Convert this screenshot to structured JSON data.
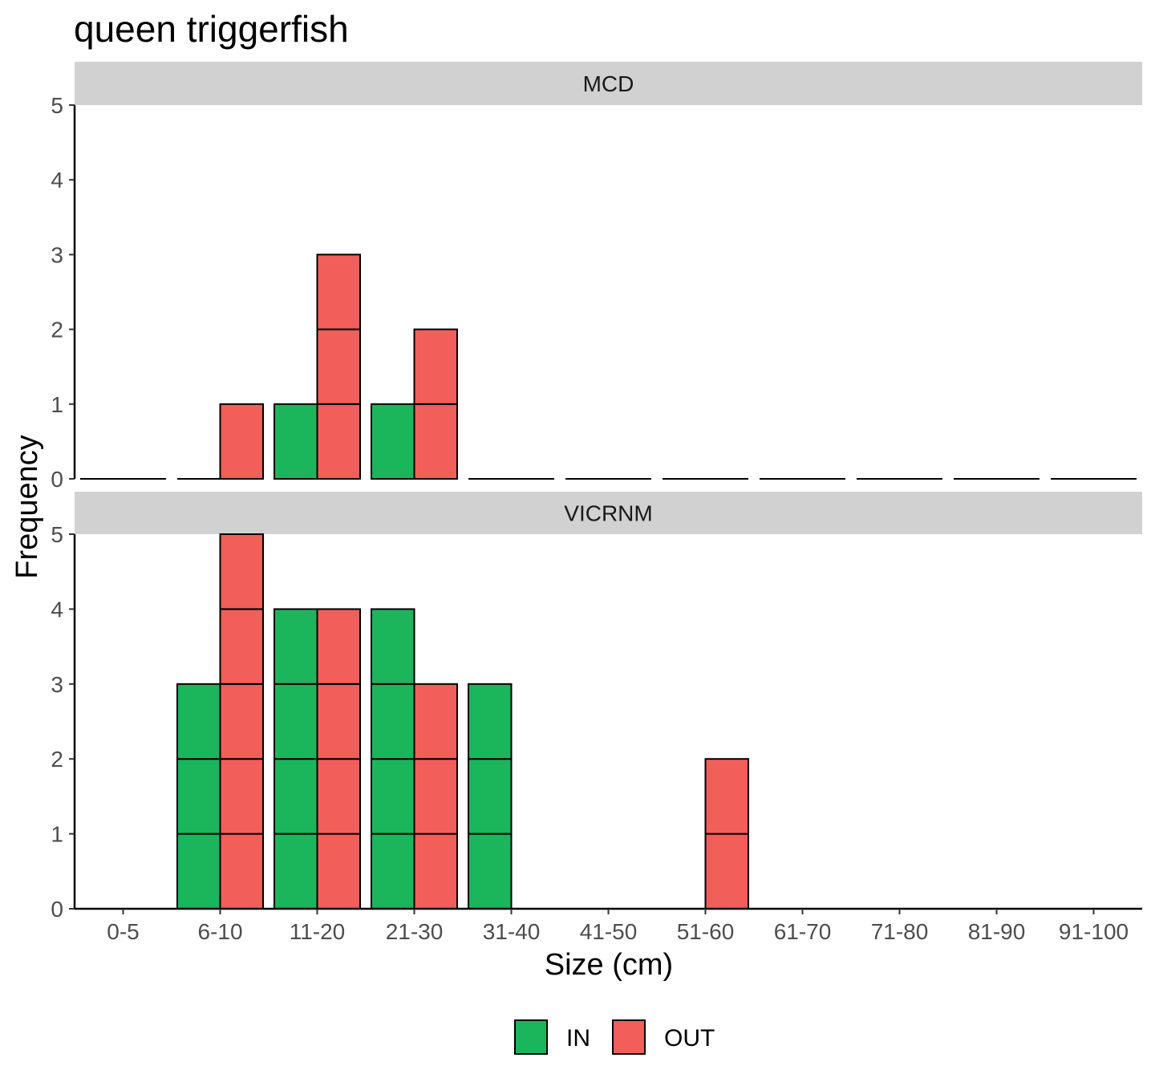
{
  "chart_data": {
    "type": "bar",
    "title": "queen triggerfish",
    "xlabel": "Size (cm)",
    "ylabel": "Frequency",
    "categories": [
      "0-5",
      "6-10",
      "11-20",
      "21-30",
      "31-40",
      "41-50",
      "51-60",
      "61-70",
      "71-80",
      "81-90",
      "91-100"
    ],
    "ylim": [
      0,
      5
    ],
    "yticks": [
      0,
      1,
      2,
      3,
      4,
      5
    ],
    "grid": false,
    "legend_position": "bottom",
    "legend": [
      {
        "name": "IN",
        "color": "#1bb55c"
      },
      {
        "name": "OUT",
        "color": "#f25e5a"
      }
    ],
    "panels": [
      {
        "name": "MCD",
        "series": [
          {
            "name": "IN",
            "values": [
              0,
              0,
              1,
              1,
              0,
              0,
              0,
              0,
              0,
              0,
              0
            ]
          },
          {
            "name": "OUT",
            "values": [
              0,
              1,
              3,
              2,
              0,
              0,
              0,
              0,
              0,
              0,
              0
            ]
          }
        ]
      },
      {
        "name": "VICRNM",
        "series": [
          {
            "name": "IN",
            "values": [
              0,
              3,
              4,
              4,
              3,
              0,
              0,
              0,
              0,
              0,
              0
            ]
          },
          {
            "name": "OUT",
            "values": [
              0,
              5,
              4,
              3,
              0,
              0,
              2,
              0,
              0,
              0,
              0
            ]
          }
        ]
      }
    ]
  }
}
